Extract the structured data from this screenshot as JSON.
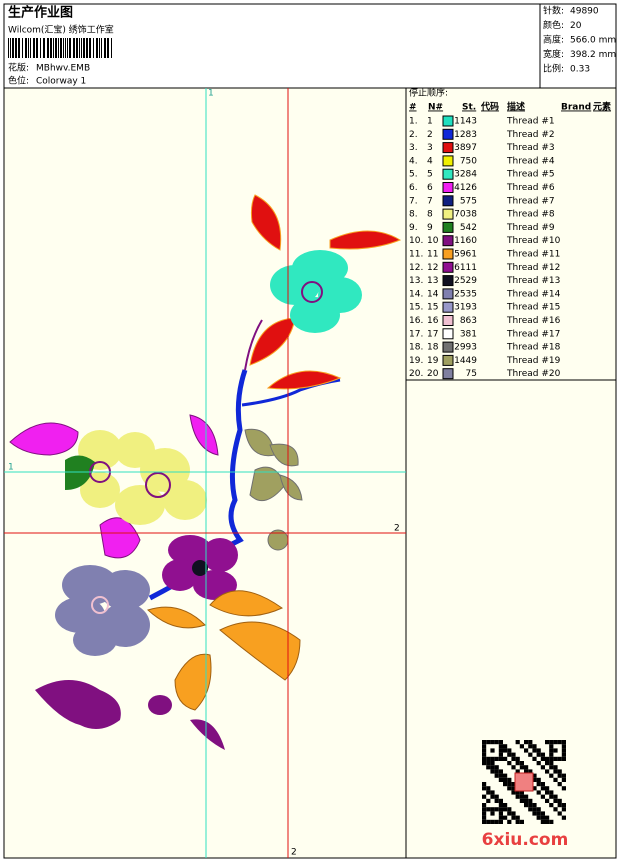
{
  "header": {
    "title": "生产作业图",
    "subtitle": "Wilcom(汇宝) 绣饰工作室",
    "design_label": "花版:",
    "design": "MBhwv.EMB",
    "colorway_label": "色位:",
    "colorway": "Colorway 1"
  },
  "stats": [
    [
      "针数:",
      "49890"
    ],
    [
      "颜色:",
      "20"
    ],
    [
      "高度:",
      "566.0 mm"
    ],
    [
      "宽度:",
      "398.2 mm"
    ],
    [
      "比例:",
      "0.33"
    ]
  ],
  "guides": {
    "vertical_1": "1",
    "horizontal_1": "1",
    "vertical_2": "2",
    "horizontal_2": "2"
  },
  "table": {
    "title": "停止顺序:",
    "headers": [
      "#",
      "N#",
      "St.",
      "代码",
      "描述",
      "Brand",
      "元素"
    ],
    "rows": [
      {
        "index": "1.",
        "needle": "1",
        "color": "#20e0c0",
        "stitches": 1143,
        "desc": "Thread #1"
      },
      {
        "index": "2.",
        "needle": "2",
        "color": "#1028d8",
        "stitches": 1283,
        "desc": "Thread #2"
      },
      {
        "index": "3.",
        "needle": "3",
        "color": "#e01010",
        "stitches": 3897,
        "desc": "Thread #3"
      },
      {
        "index": "4.",
        "needle": "4",
        "color": "#f0f000",
        "stitches": 750,
        "desc": "Thread #4"
      },
      {
        "index": "5.",
        "needle": "5",
        "color": "#30e8c0",
        "stitches": 3284,
        "desc": "Thread #5"
      },
      {
        "index": "6.",
        "needle": "6",
        "color": "#f020f0",
        "stitches": 4126,
        "desc": "Thread #6"
      },
      {
        "index": "7.",
        "needle": "7",
        "color": "#102080",
        "stitches": 575,
        "desc": "Thread #7"
      },
      {
        "index": "8.",
        "needle": "8",
        "color": "#f0f080",
        "stitches": 7038,
        "desc": "Thread #8"
      },
      {
        "index": "9.",
        "needle": "9",
        "color": "#208020",
        "stitches": 542,
        "desc": "Thread #9"
      },
      {
        "index": "10.",
        "needle": "10",
        "color": "#801080",
        "stitches": 1160,
        "desc": "Thread #10"
      },
      {
        "index": "11.",
        "needle": "11",
        "color": "#f8a020",
        "stitches": 5961,
        "desc": "Thread #11"
      },
      {
        "index": "12.",
        "needle": "12",
        "color": "#901090",
        "stitches": 6111,
        "desc": "Thread #12"
      },
      {
        "index": "13.",
        "needle": "13",
        "color": "#101020",
        "stitches": 2529,
        "desc": "Thread #13"
      },
      {
        "index": "14.",
        "needle": "14",
        "color": "#8080b0",
        "stitches": 2535,
        "desc": "Thread #14"
      },
      {
        "index": "15.",
        "needle": "15",
        "color": "#9898c8",
        "stitches": 3193,
        "desc": "Thread #15"
      },
      {
        "index": "16.",
        "needle": "16",
        "color": "#f0c0d0",
        "stitches": 863,
        "desc": "Thread #16"
      },
      {
        "index": "17.",
        "needle": "17",
        "color": "#ffffff",
        "stitches": 381,
        "desc": "Thread #17"
      },
      {
        "index": "18.",
        "needle": "18",
        "color": "#707070",
        "stitches": 2993,
        "desc": "Thread #18"
      },
      {
        "index": "19.",
        "needle": "19",
        "color": "#a0a060",
        "stitches": 1449,
        "desc": "Thread #19"
      },
      {
        "index": "20.",
        "needle": "20",
        "color": "#8080a0",
        "stitches": 75,
        "desc": "Thread #20"
      }
    ]
  },
  "watermark": "6xiu.com"
}
